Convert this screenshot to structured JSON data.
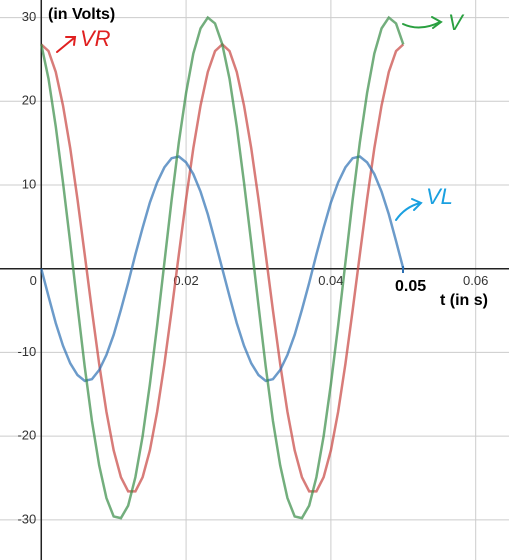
{
  "chart_data": {
    "type": "line",
    "y_label": "(in Volts)",
    "x_label": "t (in s)",
    "x_marker": "0.05",
    "x": [
      0,
      0.001,
      0.002,
      0.003,
      0.004,
      0.005,
      0.006,
      0.007,
      0.008,
      0.009,
      0.01,
      0.011,
      0.012,
      0.013,
      0.014,
      0.015,
      0.016,
      0.017,
      0.018,
      0.019,
      0.02,
      0.021,
      0.022,
      0.023,
      0.024,
      0.025,
      0.026,
      0.027,
      0.028,
      0.029,
      0.03,
      0.031,
      0.032,
      0.033,
      0.034,
      0.035,
      0.036,
      0.037,
      0.038,
      0.039,
      0.04,
      0.041,
      0.042,
      0.043,
      0.044,
      0.045,
      0.046,
      0.047,
      0.048,
      0.049,
      0.05
    ],
    "series": [
      {
        "name": "VR",
        "color": "#c74440",
        "values": [
          26.8,
          26.0,
          23.5,
          19.5,
          14.4,
          8.3,
          1.7,
          -5.0,
          -11.4,
          -17.1,
          -21.7,
          -24.9,
          -26.6,
          -26.6,
          -24.9,
          -21.7,
          -17.1,
          -11.4,
          -5.0,
          1.7,
          8.3,
          14.4,
          19.5,
          23.5,
          26.0,
          26.8,
          26.0,
          23.5,
          19.5,
          14.4,
          8.3,
          1.7,
          -5.0,
          -11.4,
          -17.1,
          -21.7,
          -24.9,
          -26.6,
          -26.6,
          -24.9,
          -21.7,
          -17.1,
          -11.4,
          -5.0,
          1.7,
          8.3,
          14.4,
          19.5,
          23.5,
          26.0,
          26.8
        ]
      },
      {
        "name": "VL",
        "color": "#2d70b3",
        "values": [
          0,
          -3.3,
          -6.5,
          -9.2,
          -11.3,
          -12.7,
          -13.4,
          -13.2,
          -12.1,
          -10.3,
          -7.9,
          -4.9,
          -1.7,
          1.7,
          4.9,
          7.9,
          10.3,
          12.1,
          13.2,
          13.4,
          12.7,
          11.3,
          9.2,
          6.5,
          3.3,
          0,
          -3.3,
          -6.5,
          -9.2,
          -11.3,
          -12.7,
          -13.4,
          -13.2,
          -12.1,
          -10.3,
          -7.9,
          -4.9,
          -1.7,
          1.7,
          4.9,
          7.9,
          10.3,
          12.1,
          13.2,
          13.4,
          12.7,
          11.3,
          9.2,
          6.5,
          3.3,
          0
        ]
      },
      {
        "name": "V",
        "color": "#388c46",
        "values": [
          26.8,
          22.7,
          17.0,
          10.3,
          3.1,
          -4.4,
          -11.7,
          -18.2,
          -23.5,
          -27.4,
          -29.6,
          -29.8,
          -28.3,
          -24.9,
          -20.0,
          -13.8,
          -6.8,
          0.7,
          8.2,
          15.1,
          21.0,
          25.7,
          28.7,
          30.0,
          29.3,
          26.8,
          22.7,
          17.0,
          10.3,
          3.1,
          -4.4,
          -11.7,
          -18.2,
          -23.5,
          -27.4,
          -29.6,
          -29.8,
          -28.3,
          -24.9,
          -20.0,
          -13.8,
          -6.8,
          0.7,
          8.2,
          15.1,
          21.0,
          25.7,
          28.7,
          30.0,
          29.3,
          26.8
        ]
      }
    ],
    "xlim": [
      -0.0057,
      0.0646
    ],
    "ylim": [
      -34.8,
      32.1
    ],
    "xticks": [
      0,
      0.02,
      0.04,
      0.06
    ],
    "yticks": [
      -30,
      -20,
      -10,
      10,
      20,
      30
    ],
    "grid": true
  }
}
